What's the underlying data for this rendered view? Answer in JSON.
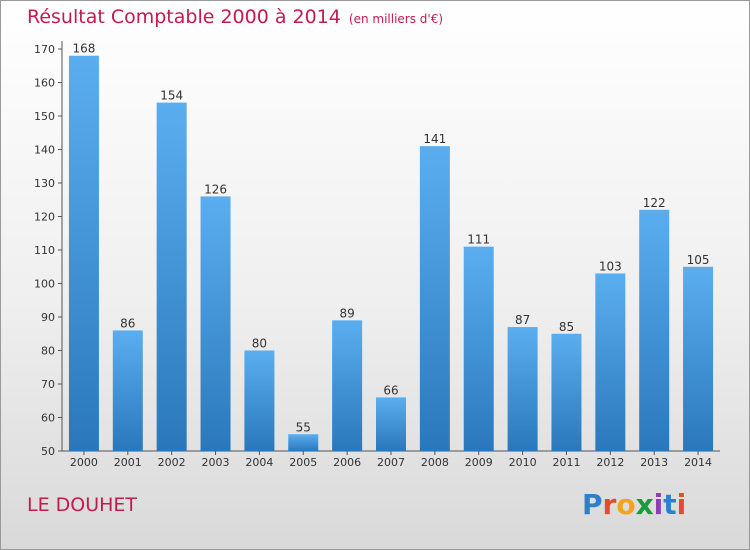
{
  "title": "Résultat Comptable 2000 à 2014",
  "subtitle": "(en milliers d'€)",
  "commune": "LE DOUHET",
  "logo_text": "Proxiti",
  "colors": {
    "accent": "#c41a4e",
    "bar_top": "#5aaef0",
    "bar_bottom": "#2a78bb"
  },
  "chart_data": {
    "type": "bar",
    "categories": [
      "2000",
      "2001",
      "2002",
      "2003",
      "2004",
      "2005",
      "2006",
      "2007",
      "2008",
      "2009",
      "2010",
      "2011",
      "2012",
      "2013",
      "2014"
    ],
    "values": [
      168,
      86,
      154,
      126,
      80,
      55,
      89,
      66,
      141,
      111,
      87,
      85,
      103,
      122,
      105
    ],
    "ylim": [
      50,
      170
    ],
    "yticks": [
      50,
      60,
      70,
      80,
      90,
      100,
      110,
      120,
      130,
      140,
      150,
      160,
      170
    ],
    "grid": false,
    "data_labels": true
  }
}
